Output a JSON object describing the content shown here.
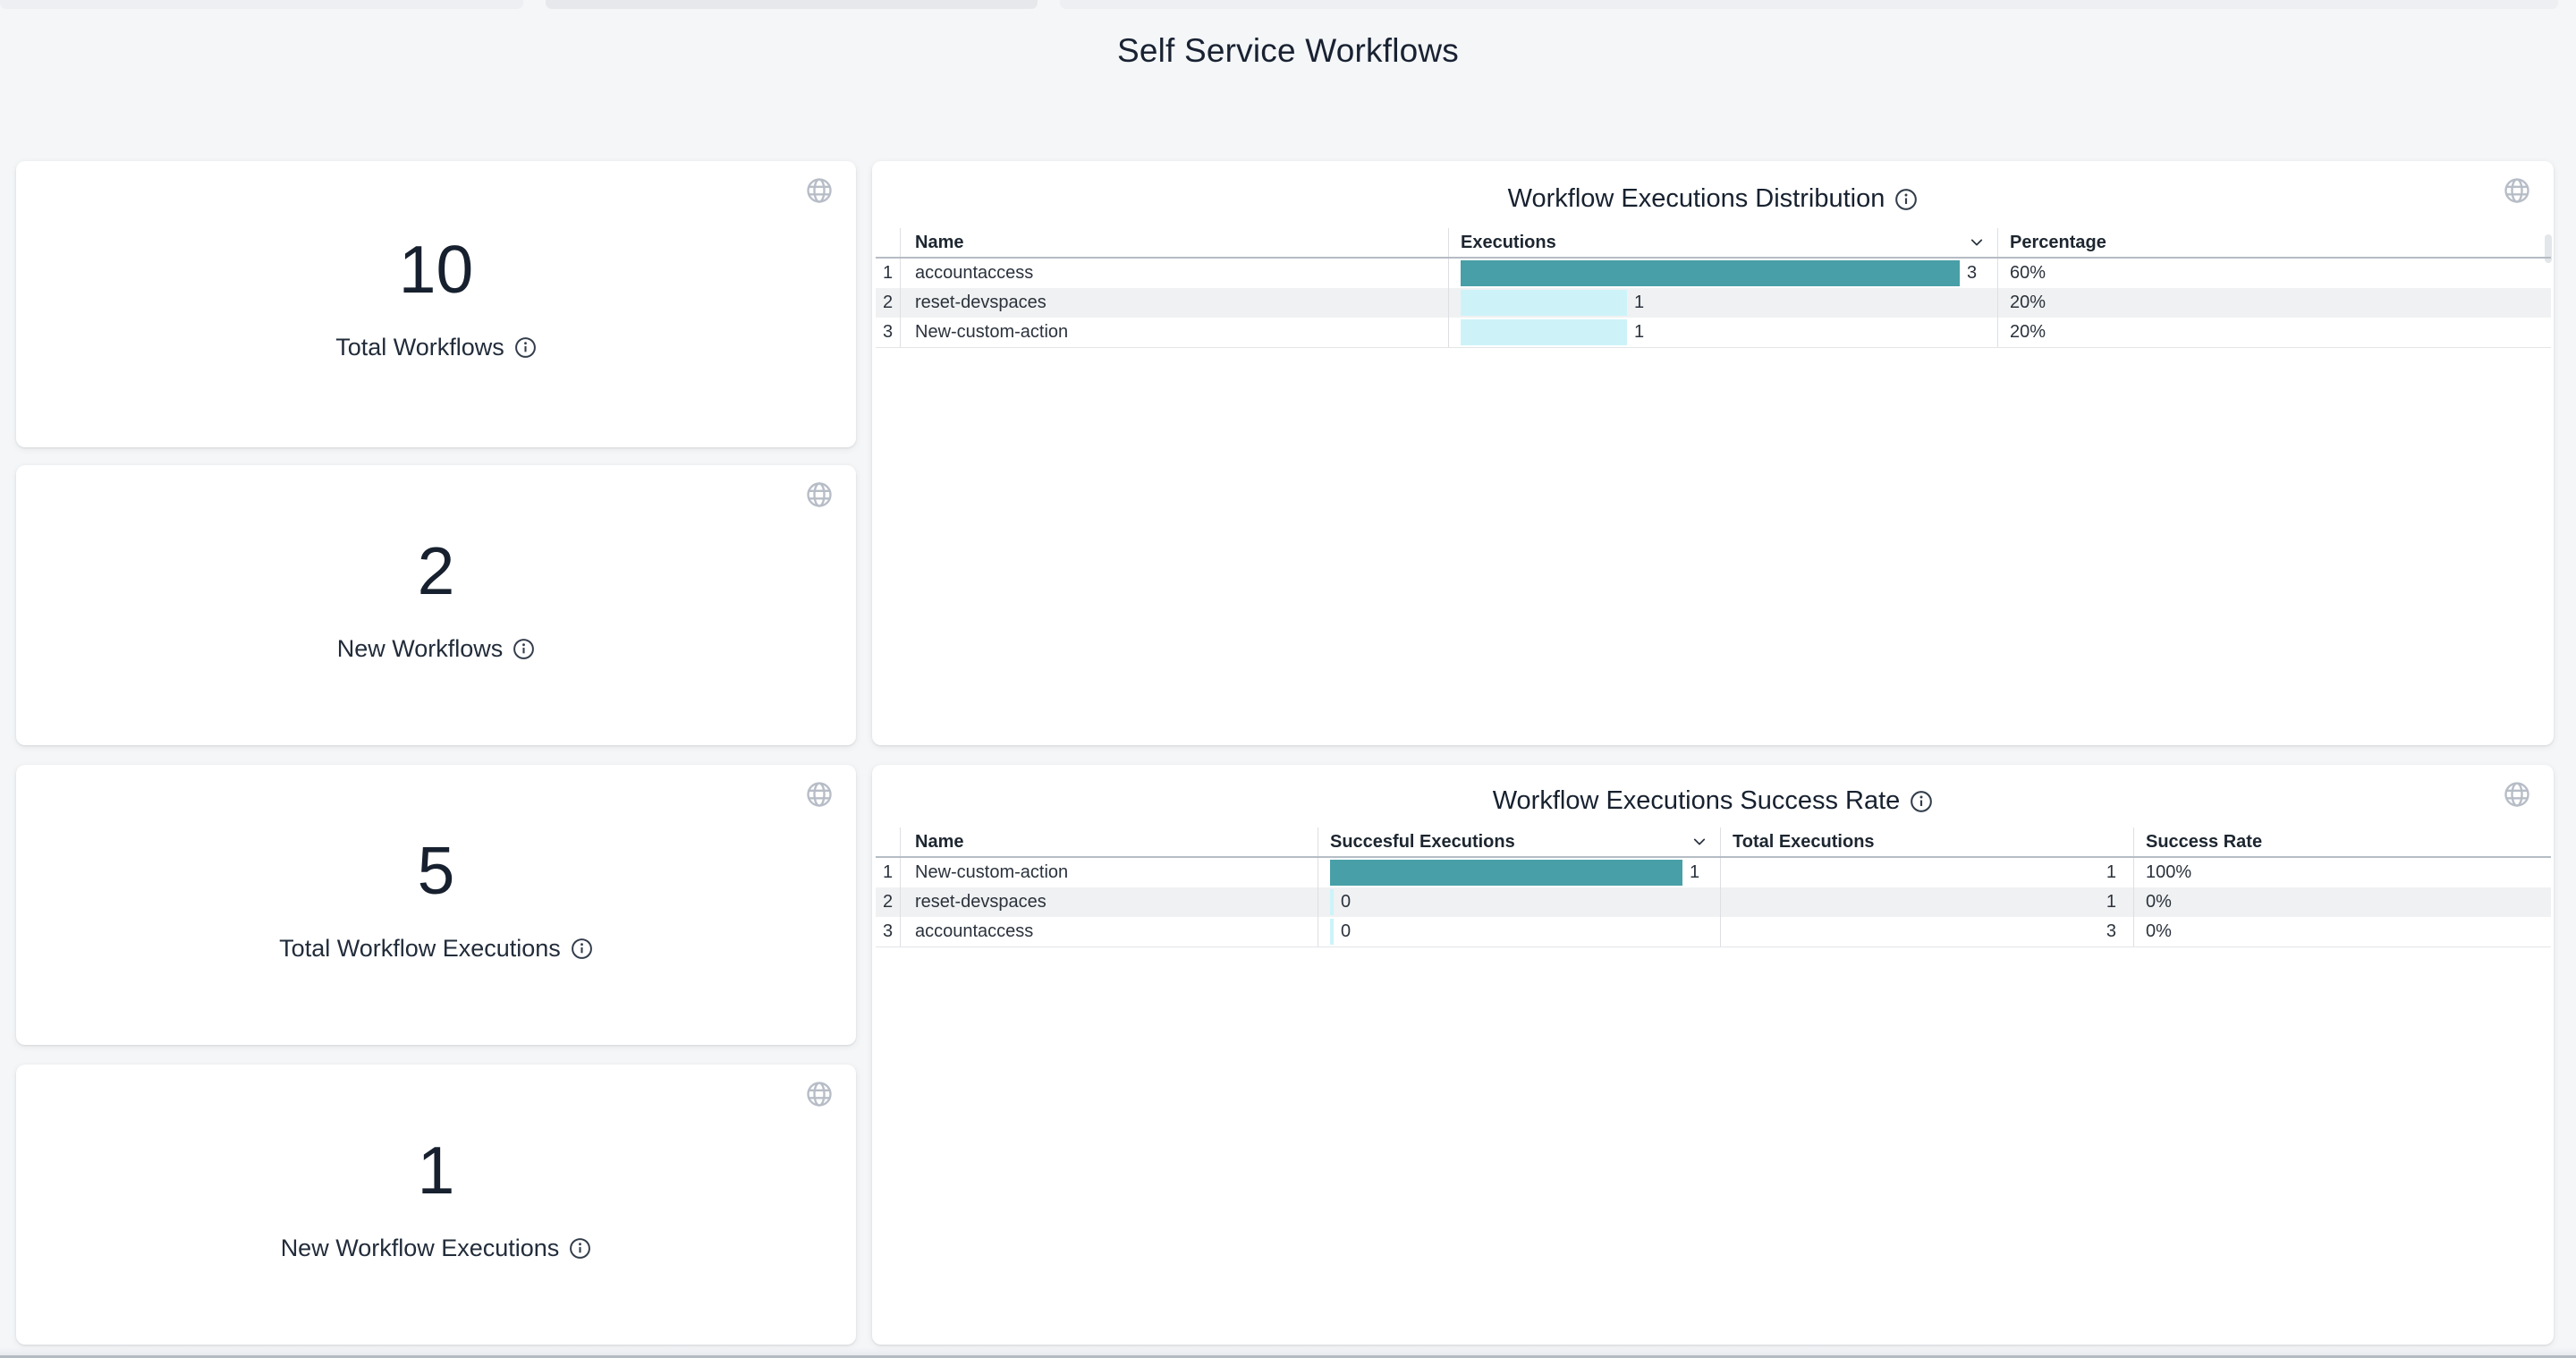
{
  "page": {
    "title": "Self Service Workflows"
  },
  "colors": {
    "background": "#f4f6f8",
    "card": "#ffffff",
    "bar_primary_teal": "#489fa7",
    "bar_secondary_cyan": "#cdf3f9",
    "text_dark": "#17202e",
    "icon_gray": "#b7bdc7"
  },
  "icons": {
    "card_corner": "globe-icon",
    "label_info": "info-icon",
    "header_sort": "chevron-down-icon"
  },
  "stat_cards": [
    {
      "value": "10",
      "label": "Total Workflows"
    },
    {
      "value": "2",
      "label": "New Workflows"
    },
    {
      "value": "5",
      "label": "Total Workflow Executions"
    },
    {
      "value": "1",
      "label": "New Workflow Executions"
    }
  ],
  "tables": [
    {
      "title": "Workflow Executions Distribution",
      "headers": {
        "name": "Name",
        "executions": "Executions",
        "percentage": "Percentage"
      },
      "rows": [
        {
          "index": "1",
          "name": "accountaccess",
          "executions": 3,
          "percentage": "60%"
        },
        {
          "index": "2",
          "name": "reset-devspaces",
          "executions": 1,
          "percentage": "20%"
        },
        {
          "index": "3",
          "name": "New-custom-action",
          "executions": 1,
          "percentage": "20%"
        }
      ]
    },
    {
      "title": "Workflow Executions Success Rate",
      "headers": {
        "name": "Name",
        "successful": "Succesful Executions",
        "total": "Total Executions",
        "rate": "Success Rate"
      },
      "rows": [
        {
          "index": "1",
          "name": "New-custom-action",
          "successful": 1,
          "total": 1,
          "rate": "100%"
        },
        {
          "index": "2",
          "name": "reset-devspaces",
          "successful": 0,
          "total": 1,
          "rate": "0%"
        },
        {
          "index": "3",
          "name": "accountaccess",
          "successful": 0,
          "total": 3,
          "rate": "0%"
        }
      ]
    }
  ],
  "chart_data": [
    {
      "type": "table",
      "title": "Workflow Executions Distribution",
      "columns": [
        "Name",
        "Executions",
        "Percentage"
      ],
      "rows": [
        [
          "accountaccess",
          3,
          "60%"
        ],
        [
          "reset-devspaces",
          1,
          "20%"
        ],
        [
          "New-custom-action",
          1,
          "20%"
        ]
      ],
      "bar_column": "Executions",
      "bar_max": 3,
      "sorted_by": "Executions",
      "sort_direction": "desc"
    },
    {
      "type": "table",
      "title": "Workflow Executions Success Rate",
      "columns": [
        "Name",
        "Succesful Executions",
        "Total Executions",
        "Success Rate"
      ],
      "rows": [
        [
          "New-custom-action",
          1,
          1,
          "100%"
        ],
        [
          "reset-devspaces",
          0,
          1,
          "0%"
        ],
        [
          "accountaccess",
          0,
          3,
          "0%"
        ]
      ],
      "bar_column": "Succesful Executions",
      "bar_max": 1,
      "sorted_by": "Succesful Executions",
      "sort_direction": "desc"
    }
  ]
}
